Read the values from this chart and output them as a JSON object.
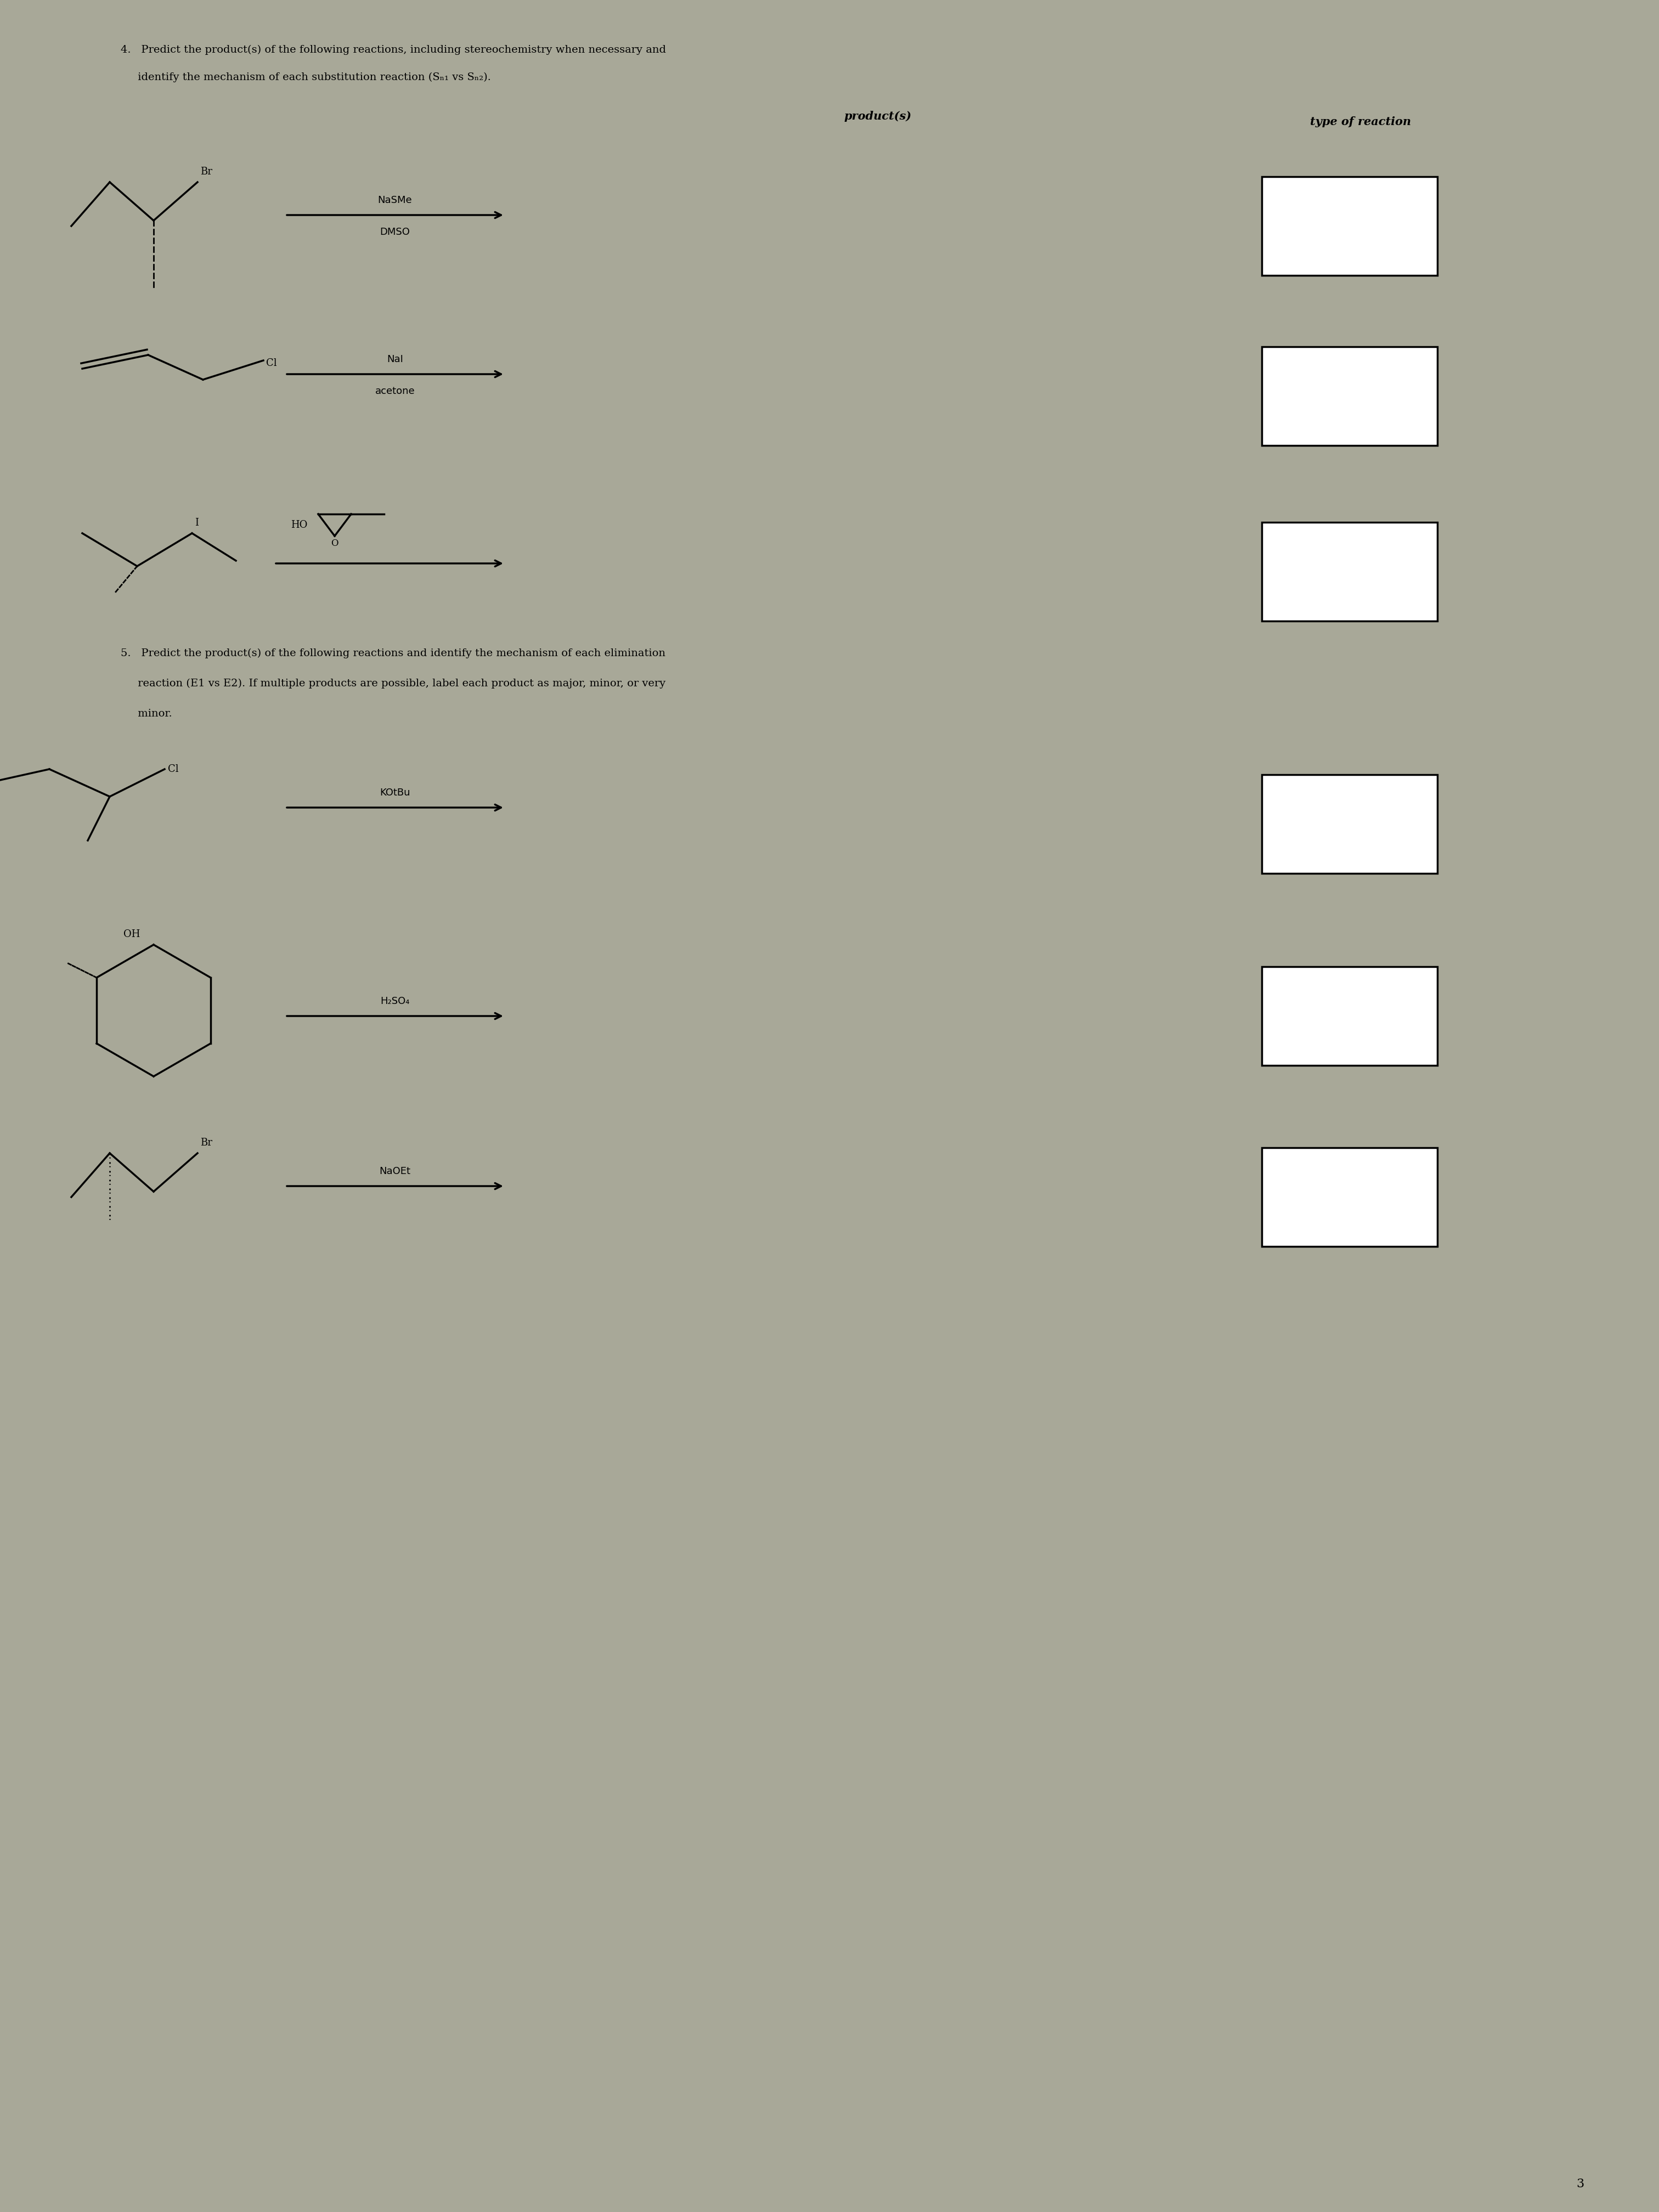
{
  "bg_color": "#a8a898",
  "text_color": "#000000",
  "page_width": 30.24,
  "page_height": 40.32,
  "col_products_label": "product(s)",
  "col_reaction_label": "type of reaction",
  "page_num": "3",
  "q4_line1": "4.   Predict the product(s) of the following reactions, including stereochemistry when necessary and",
  "q4_line2": "     identify the mechanism of each substitution reaction (Sₙ₁ vs Sₙ₂).",
  "q5_line1": "5.   Predict the product(s) of the following reactions and identify the mechanism of each elimination",
  "q5_line2": "     reaction (E1 vs E2). If multiple products are possible, label each product as major, minor, or very",
  "q5_line3": "     minor."
}
